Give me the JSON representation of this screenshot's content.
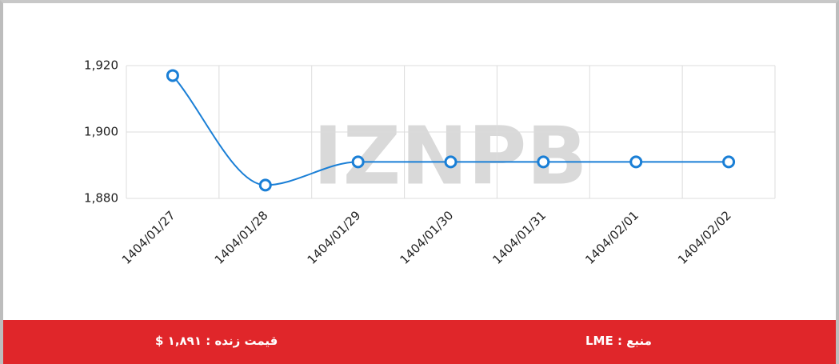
{
  "chart_data": {
    "type": "line",
    "categories": [
      "1404/01/27",
      "1404/01/28",
      "1404/01/29",
      "1404/01/30",
      "1404/01/31",
      "1404/02/01",
      "1404/02/02"
    ],
    "series": [
      {
        "name": "LME",
        "color": "#1a7fd6",
        "values": [
          1917,
          1884,
          1891,
          1891,
          1891,
          1891,
          1891
        ]
      }
    ],
    "ylim": [
      1880,
      1920
    ],
    "yticks": [
      {
        "value": 1880,
        "label": "1,880"
      },
      {
        "value": 1900,
        "label": "1,900"
      },
      {
        "value": 1920,
        "label": "1,920"
      }
    ],
    "grid": true
  },
  "watermark": "IZNPB",
  "footer": {
    "price": "قیمت زنده : ۱,۸۹۱ $",
    "source": "منبع : LME"
  }
}
